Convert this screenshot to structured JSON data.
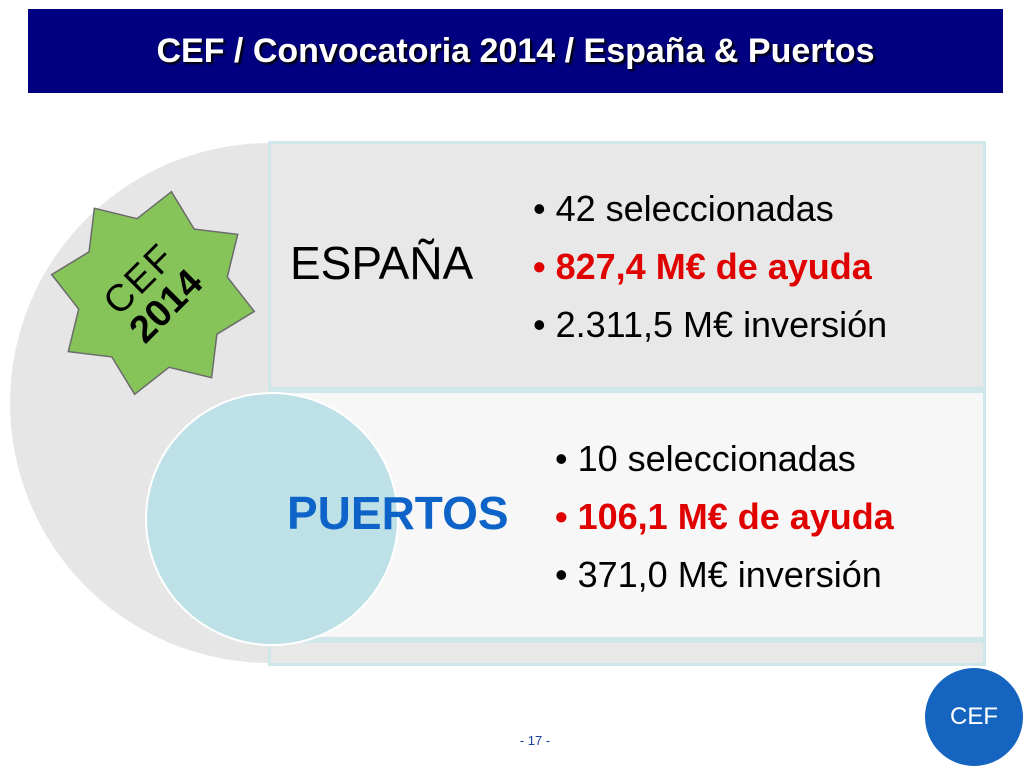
{
  "title": "CEF / Convocatoria 2014 / España & Puertos",
  "star": {
    "line1": "CEF",
    "line2": "2014",
    "color": "#86c45a"
  },
  "espana": {
    "label": "ESPAÑA",
    "bullets": [
      "42 seleccionadas",
      "827,4 M€ de ayuda",
      "2.311,5 M€ inversión"
    ]
  },
  "puertos": {
    "label": "PUERTOS",
    "bullets": [
      "10 seleccionadas",
      "106,1 M€ de ayuda",
      "371,0 M€ inversión"
    ]
  },
  "badge": "CEF",
  "page_number": "- 17 -",
  "colors": {
    "title_bg": "#000080",
    "highlight_red": "#e00000",
    "puertos_blue": "#0d63c8",
    "badge_blue": "#1565c0"
  }
}
